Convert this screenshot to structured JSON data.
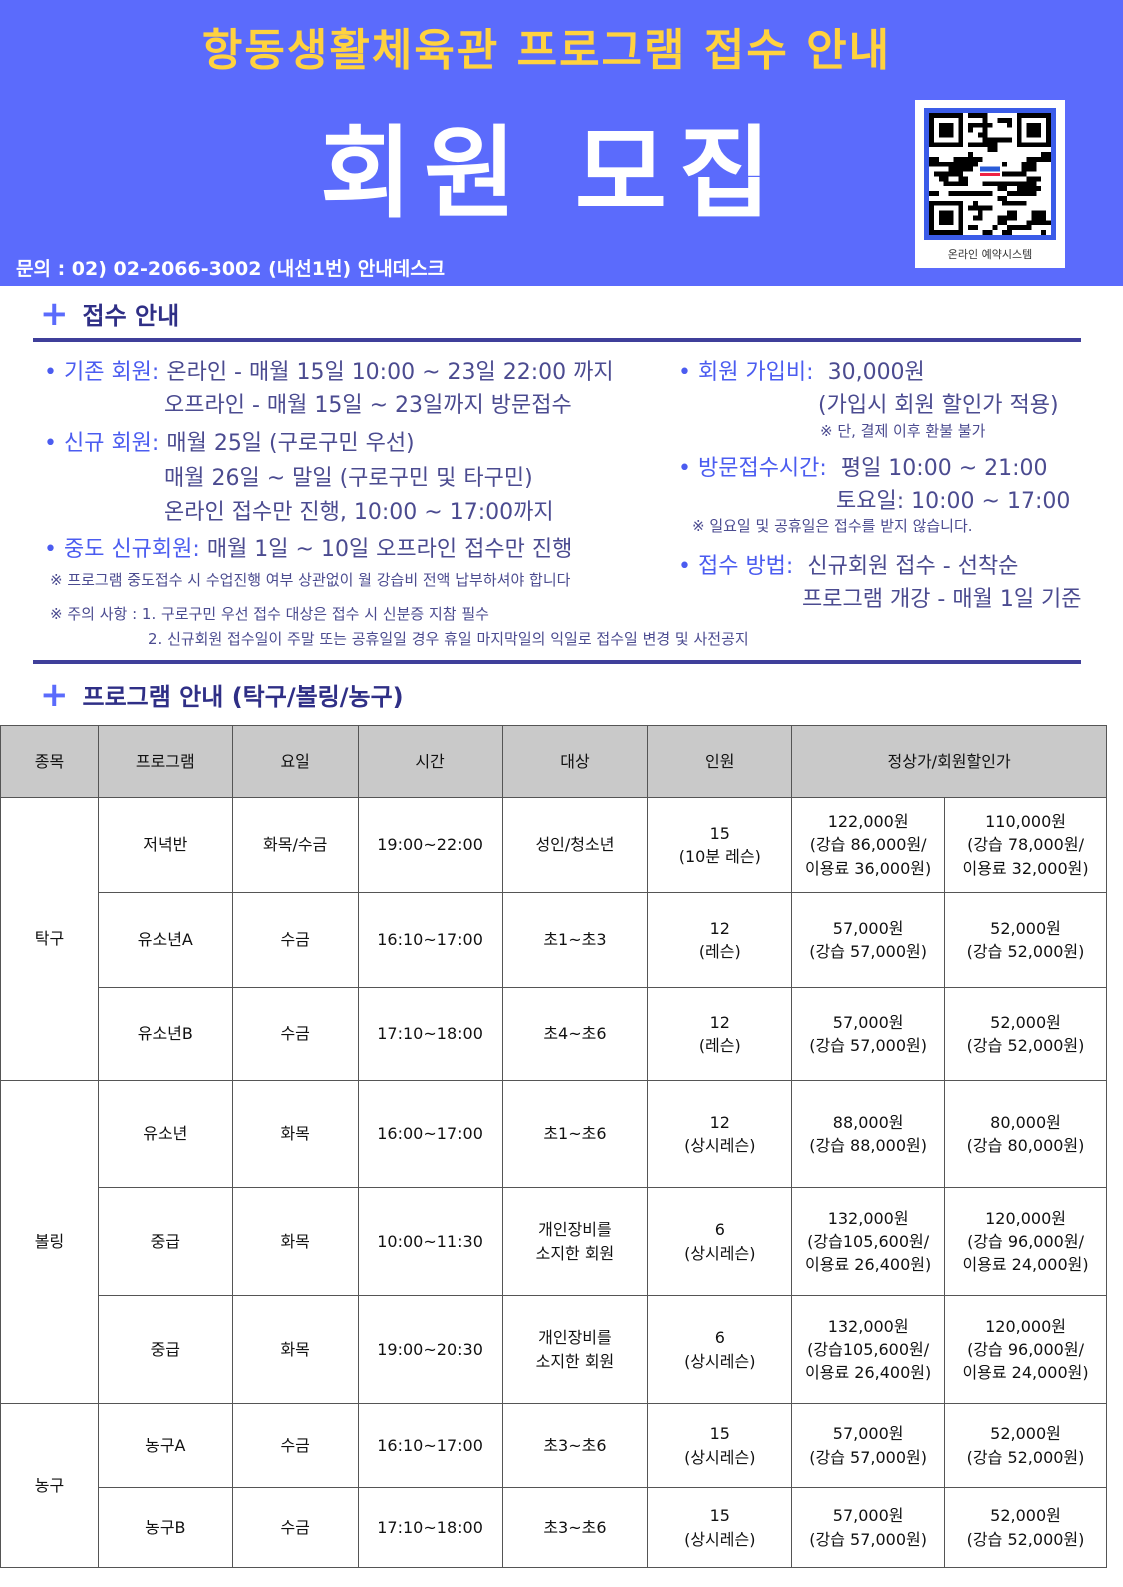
{
  "header": {
    "title_top": "항동생활체육관 프로그램 접수 안내",
    "title_main": "회원 모집",
    "contact": "문의 : 02) 02-2066-3002 (내선1번) 안내데스크",
    "qr_caption": "온라인 예약시스템",
    "bg_color": "#5b6bfc",
    "title_color": "#ffd23f"
  },
  "section1": {
    "title": "접수 안내",
    "existing_label": "• 기존 회원:",
    "existing_1": "온라인 - 매월 15일 10:00 ~ 23일 22:00 까지",
    "existing_2": "오프라인 - 매월 15일 ~ 23일까지 방문접수",
    "new_label": "• 신규 회원:",
    "new_1": "매월 25일 (구로구민 우선)",
    "new_2": "매월 26일 ~ 말일 (구로구민 및 타구민)",
    "new_3": "온라인 접수만 진행, 10:00 ~ 17:00까지",
    "mid_label": "• 중도 신규회원:",
    "mid_1": "매월 1일 ~ 10일 오프라인 접수만 진행",
    "mid_note": "※ 프로그램 중도접수 시  수업진행 여부 상관없이 월 강습비 전액 납부하셔야 합니다",
    "caution_1": "※ 주의 사항 : 1. 구로구민 우선 접수 대상은 접수 시 신분증 지참 필수",
    "caution_2": "2. 신규회원 접수일이 주말 또는 공휴일일 경우  휴일 마지막일의 익일로 접수일 변경 및 사전공지",
    "fee_label": "• 회원 가입비:",
    "fee_1": "30,000원",
    "fee_2": "(가입시 회원 할인가 적용)",
    "fee_note": "※ 단, 결제 이후 환불 불가",
    "visit_label": "• 방문접수시간:",
    "visit_1": "평일 10:00 ~ 21:00",
    "visit_2": "토요일: 10:00 ~ 17:00",
    "visit_note": "※ 일요일 및 공휴일은 접수를 받지 않습니다.",
    "method_label": "• 접수 방법:",
    "method_1": "신규회원 접수 - 선착순",
    "method_2": "프로그램 개강 - 매월 1일 기준"
  },
  "section2": {
    "title": "프로그램 안내 (탁구/볼링/농구)",
    "columns": [
      "종목",
      "프로그램",
      "요일",
      "시간",
      "대상",
      "인원",
      "정상가/회원할인가"
    ],
    "groups": [
      {
        "sport": "탁구",
        "rows": [
          {
            "program": "저녁반",
            "days": "화목/수금",
            "time": "19:00~22:00",
            "target": "성인/청소년",
            "capacity": "15\n(10분 레슨)",
            "regular": "122,000원\n(강습 86,000원/\n이용료 36,000원)",
            "member": "110,000원\n(강습 78,000원/\n이용료 32,000원)"
          },
          {
            "program": "유소년A",
            "days": "수금",
            "time": "16:10~17:00",
            "target": "초1~초3",
            "capacity": "12\n(레슨)",
            "regular": "57,000원\n(강습 57,000원)",
            "member": "52,000원\n(강습 52,000원)"
          },
          {
            "program": "유소년B",
            "days": "수금",
            "time": "17:10~18:00",
            "target": "초4~초6",
            "capacity": "12\n(레슨)",
            "regular": "57,000원\n(강습 57,000원)",
            "member": "52,000원\n(강습 52,000원)"
          }
        ]
      },
      {
        "sport": "볼링",
        "rows": [
          {
            "program": "유소년",
            "days": "화목",
            "time": "16:00~17:00",
            "target": "초1~초6",
            "capacity": "12\n(상시레슨)",
            "regular": "88,000원\n(강습 88,000원)",
            "member": "80,000원\n(강습 80,000원)"
          },
          {
            "program": "중급",
            "days": "화목",
            "time": "10:00~11:30",
            "target": "개인장비를\n소지한 회원",
            "capacity": "6\n(상시레슨)",
            "regular": "132,000원\n(강습105,600원/\n이용료 26,400원)",
            "member": "120,000원\n(강습 96,000원/\n이용료 24,000원)"
          },
          {
            "program": "중급",
            "days": "화목",
            "time": "19:00~20:30",
            "target": "개인장비를\n소지한 회원",
            "capacity": "6\n(상시레슨)",
            "regular": "132,000원\n(강습105,600원/\n이용료 26,400원)",
            "member": "120,000원\n(강습 96,000원/\n이용료 24,000원)"
          }
        ]
      },
      {
        "sport": "농구",
        "rows": [
          {
            "program": "농구A",
            "days": "수금",
            "time": "16:10~17:00",
            "target": "초3~초6",
            "capacity": "15\n(상시레슨)",
            "regular": "57,000원\n(강습 57,000원)",
            "member": "52,000원\n(강습 52,000원)"
          },
          {
            "program": "농구B",
            "days": "수금",
            "time": "17:10~18:00",
            "target": "초3~초6",
            "capacity": "15\n(상시레슨)",
            "regular": "57,000원\n(강습 57,000원)",
            "member": "52,000원\n(강습 52,000원)"
          }
        ]
      }
    ]
  }
}
